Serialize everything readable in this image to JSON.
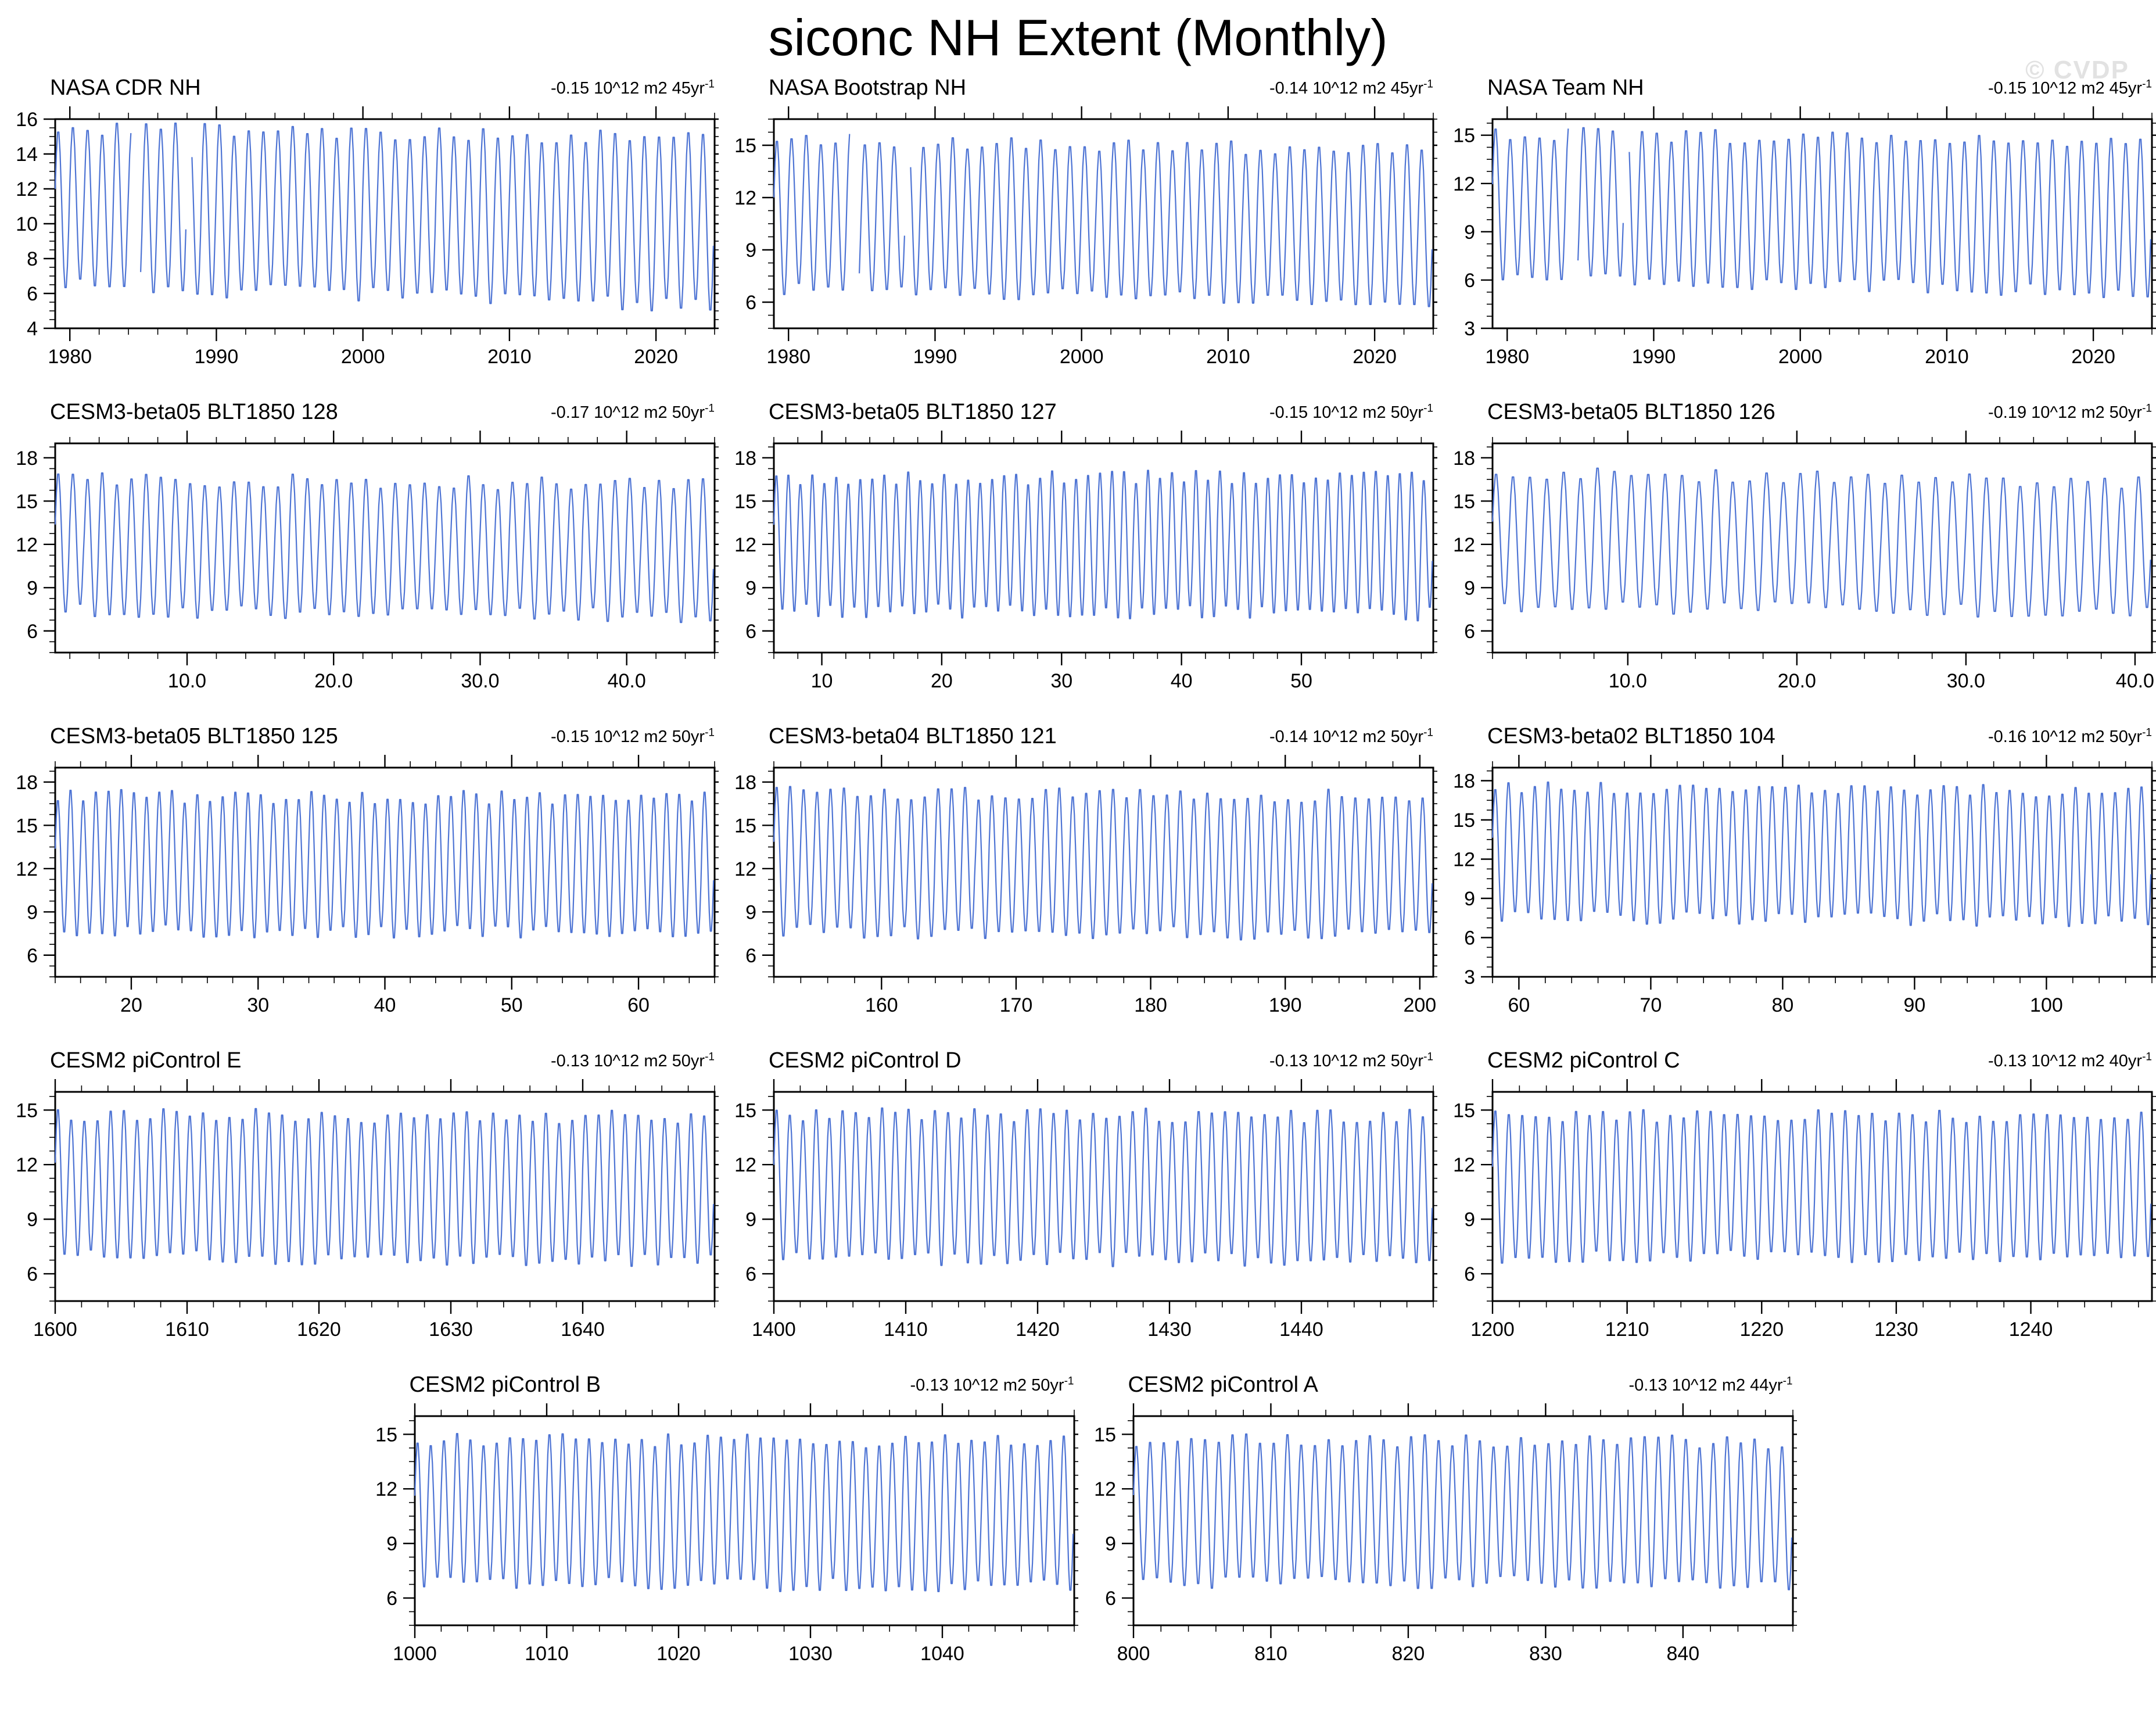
{
  "title": "siconc NH Extent (Monthly)",
  "watermark": "© CVDP",
  "colors": {
    "line": "#4e74d4",
    "axis": "#000000",
    "watermark": "#e2e2e2"
  },
  "chart_data": [
    {
      "type": "line",
      "title": "NASA CDR NH",
      "trend_text": "-0.15 10^12 m2 45yr",
      "trend_sup": "-1",
      "x_start": 1979,
      "x_end": 2024,
      "xticks": [
        1980,
        1990,
        2000,
        2010,
        2020
      ],
      "xtick_labels": [
        "1980",
        "1990",
        "2000",
        "2010",
        "2020"
      ],
      "x_minor_step": 2,
      "ylim": [
        4,
        16
      ],
      "yticks": [
        4,
        6,
        8,
        10,
        12,
        14,
        16
      ],
      "ytick_labels": [
        "4",
        "6",
        "8",
        "10",
        "12",
        "14",
        "16"
      ],
      "y_minor_step": 0.5,
      "line_color": "#4e74d4",
      "envelope": {
        "winter_max_start": 15.7,
        "winter_max_end": 15.0,
        "summer_min_start": 6.3,
        "summer_min_end": 5.1,
        "noise": 0.45,
        "seed": 11
      },
      "gaps": [
        [
          1984.2,
          1984.8
        ],
        [
          1987.95,
          1988.25
        ]
      ]
    },
    {
      "type": "line",
      "title": "NASA Bootstrap NH",
      "trend_text": "-0.14 10^12 m2 45yr",
      "trend_sup": "-1",
      "x_start": 1979,
      "x_end": 2024,
      "xticks": [
        1980,
        1990,
        2000,
        2010,
        2020
      ],
      "xtick_labels": [
        "1980",
        "1990",
        "2000",
        "2010",
        "2020"
      ],
      "x_minor_step": 2,
      "ylim": [
        4.5,
        16.5
      ],
      "yticks": [
        6,
        9,
        12,
        15
      ],
      "ytick_labels": [
        "6",
        "9",
        "12",
        "15"
      ],
      "y_minor_step": 0.75,
      "line_color": "#4e74d4",
      "envelope": {
        "winter_max_start": 15.5,
        "winter_max_end": 14.8,
        "summer_min_start": 6.6,
        "summer_min_end": 5.8,
        "noise": 0.4,
        "seed": 23
      },
      "gaps": [
        [
          1984.2,
          1984.8
        ],
        [
          1987.95,
          1988.25
        ]
      ]
    },
    {
      "type": "line",
      "title": "NASA Team NH",
      "trend_text": "-0.15 10^12 m2 45yr",
      "trend_sup": "-1",
      "x_start": 1979,
      "x_end": 2024,
      "xticks": [
        1980,
        1990,
        2000,
        2010,
        2020
      ],
      "xtick_labels": [
        "1980",
        "1990",
        "2000",
        "2010",
        "2020"
      ],
      "x_minor_step": 2,
      "ylim": [
        3,
        16
      ],
      "yticks": [
        3,
        6,
        9,
        12,
        15
      ],
      "ytick_labels": [
        "3",
        "6",
        "9",
        "12",
        "15"
      ],
      "y_minor_step": 0.75,
      "line_color": "#4e74d4",
      "envelope": {
        "winter_max_start": 15.3,
        "winter_max_end": 14.6,
        "summer_min_start": 6.1,
        "summer_min_end": 5.0,
        "noise": 0.45,
        "seed": 37
      },
      "gaps": [
        [
          1984.2,
          1984.8
        ],
        [
          1987.95,
          1988.25
        ]
      ]
    },
    {
      "type": "line",
      "title": "CESM3-beta05 BLT1850 128",
      "trend_text": "-0.17 10^12 m2 50yr",
      "trend_sup": "-1",
      "x_start": 1,
      "x_end": 46,
      "xticks": [
        10,
        20,
        30,
        40
      ],
      "xtick_labels": [
        "10.0",
        "20.0",
        "30.0",
        "40.0"
      ],
      "x_minor_step": 2,
      "ylim": [
        4.5,
        19
      ],
      "yticks": [
        6,
        9,
        12,
        15,
        18
      ],
      "ytick_labels": [
        "6",
        "9",
        "12",
        "15",
        "18"
      ],
      "y_minor_step": 0.75,
      "line_color": "#4e74d4",
      "envelope": {
        "winter_max_start": 16.7,
        "winter_max_end": 16.3,
        "summer_min_start": 7.2,
        "summer_min_end": 6.9,
        "noise": 0.5,
        "seed": 41
      },
      "gaps": []
    },
    {
      "type": "line",
      "title": "CESM3-beta05 BLT1850 127",
      "trend_text": "-0.15 10^12 m2 50yr",
      "trend_sup": "-1",
      "x_start": 6,
      "x_end": 61,
      "xticks": [
        10,
        20,
        30,
        40,
        50
      ],
      "xtick_labels": [
        "10",
        "20",
        "30",
        "40",
        "50"
      ],
      "x_minor_step": 2,
      "ylim": [
        4.5,
        19
      ],
      "yticks": [
        6,
        9,
        12,
        15,
        18
      ],
      "ytick_labels": [
        "6",
        "9",
        "12",
        "15",
        "18"
      ],
      "y_minor_step": 0.75,
      "line_color": "#4e74d4",
      "envelope": {
        "winter_max_start": 16.7,
        "winter_max_end": 16.9,
        "summer_min_start": 7.3,
        "summer_min_end": 7.0,
        "noise": 0.5,
        "seed": 53
      },
      "gaps": []
    },
    {
      "type": "line",
      "title": "CESM3-beta05 BLT1850 126",
      "trend_text": "-0.19 10^12 m2 50yr",
      "trend_sup": "-1",
      "x_start": 2,
      "x_end": 41,
      "xticks": [
        10,
        20,
        30,
        40
      ],
      "xtick_labels": [
        "10.0",
        "20.0",
        "30.0",
        "40.0"
      ],
      "x_minor_step": 2,
      "ylim": [
        4.5,
        19
      ],
      "yticks": [
        6,
        9,
        12,
        15,
        18
      ],
      "ytick_labels": [
        "6",
        "9",
        "12",
        "15",
        "18"
      ],
      "y_minor_step": 0.75,
      "line_color": "#4e74d4",
      "envelope": {
        "winter_max_start": 17.2,
        "winter_max_end": 16.5,
        "summer_min_start": 7.6,
        "summer_min_end": 7.1,
        "noise": 0.5,
        "seed": 67
      },
      "gaps": []
    },
    {
      "type": "line",
      "title": "CESM3-beta05 BLT1850 125",
      "trend_text": "-0.15 10^12 m2 50yr",
      "trend_sup": "-1",
      "x_start": 14,
      "x_end": 66,
      "xticks": [
        20,
        30,
        40,
        50,
        60
      ],
      "xtick_labels": [
        "20",
        "30",
        "40",
        "50",
        "60"
      ],
      "x_minor_step": 2,
      "ylim": [
        4.5,
        19
      ],
      "yticks": [
        6,
        9,
        12,
        15,
        18
      ],
      "ytick_labels": [
        "6",
        "9",
        "12",
        "15",
        "18"
      ],
      "y_minor_step": 0.75,
      "line_color": "#4e74d4",
      "envelope": {
        "winter_max_start": 17.2,
        "winter_max_end": 17.0,
        "summer_min_start": 7.6,
        "summer_min_end": 7.3,
        "noise": 0.5,
        "seed": 71
      },
      "gaps": []
    },
    {
      "type": "line",
      "title": "CESM3-beta04 BLT1850 121",
      "trend_text": "-0.14 10^12 m2 50yr",
      "trend_sup": "-1",
      "x_start": 152,
      "x_end": 201,
      "xticks": [
        160,
        170,
        180,
        190,
        200
      ],
      "xtick_labels": [
        "160",
        "170",
        "180",
        "190",
        "200"
      ],
      "x_minor_step": 2,
      "ylim": [
        4.5,
        19
      ],
      "yticks": [
        6,
        9,
        12,
        15,
        18
      ],
      "ytick_labels": [
        "6",
        "9",
        "12",
        "15",
        "18"
      ],
      "y_minor_step": 0.75,
      "line_color": "#4e74d4",
      "envelope": {
        "winter_max_start": 17.4,
        "winter_max_end": 17.2,
        "summer_min_start": 7.5,
        "summer_min_end": 7.2,
        "noise": 0.5,
        "seed": 83
      },
      "gaps": []
    },
    {
      "type": "line",
      "title": "CESM3-beta02 BLT1850 104",
      "trend_text": "-0.16 10^12 m2 50yr",
      "trend_sup": "-1",
      "x_start": 58,
      "x_end": 108,
      "xticks": [
        60,
        70,
        80,
        90,
        100
      ],
      "xtick_labels": [
        "60",
        "70",
        "80",
        "90",
        "100"
      ],
      "x_minor_step": 2,
      "ylim": [
        3,
        19
      ],
      "yticks": [
        3,
        6,
        9,
        12,
        15,
        18
      ],
      "ytick_labels": [
        "3",
        "6",
        "9",
        "12",
        "15",
        "18"
      ],
      "y_minor_step": 0.75,
      "line_color": "#4e74d4",
      "envelope": {
        "winter_max_start": 17.6,
        "winter_max_end": 17.3,
        "summer_min_start": 7.4,
        "summer_min_end": 7.1,
        "noise": 0.5,
        "seed": 97
      },
      "gaps": []
    },
    {
      "type": "line",
      "title": "CESM2 piControl E",
      "trend_text": "-0.13 10^12 m2 50yr",
      "trend_sup": "-1",
      "x_start": 1600,
      "x_end": 1650,
      "xticks": [
        1600,
        1610,
        1620,
        1630,
        1640
      ],
      "xtick_labels": [
        "1600",
        "1610",
        "1620",
        "1630",
        "1640"
      ],
      "x_minor_step": 2,
      "ylim": [
        4.5,
        16
      ],
      "yticks": [
        6,
        9,
        12,
        15
      ],
      "ytick_labels": [
        "6",
        "9",
        "12",
        "15"
      ],
      "y_minor_step": 0.75,
      "line_color": "#4e74d4",
      "envelope": {
        "winter_max_start": 14.9,
        "winter_max_end": 14.7,
        "summer_min_start": 6.8,
        "summer_min_end": 6.6,
        "noise": 0.4,
        "seed": 103
      },
      "gaps": []
    },
    {
      "type": "line",
      "title": "CESM2 piControl D",
      "trend_text": "-0.13 10^12 m2 50yr",
      "trend_sup": "-1",
      "x_start": 1400,
      "x_end": 1450,
      "xticks": [
        1400,
        1410,
        1420,
        1430,
        1440
      ],
      "xtick_labels": [
        "1400",
        "1410",
        "1420",
        "1430",
        "1440"
      ],
      "x_minor_step": 2,
      "ylim": [
        4.5,
        16
      ],
      "yticks": [
        6,
        9,
        12,
        15
      ],
      "ytick_labels": [
        "6",
        "9",
        "12",
        "15"
      ],
      "y_minor_step": 0.75,
      "line_color": "#4e74d4",
      "envelope": {
        "winter_max_start": 14.9,
        "winter_max_end": 14.8,
        "summer_min_start": 6.7,
        "summer_min_end": 6.6,
        "noise": 0.4,
        "seed": 109
      },
      "gaps": []
    },
    {
      "type": "line",
      "title": "CESM2 piControl C",
      "trend_text": "-0.13 10^12 m2 40yr",
      "trend_sup": "-1",
      "x_start": 1200,
      "x_end": 1249,
      "xticks": [
        1200,
        1210,
        1220,
        1230,
        1240
      ],
      "xtick_labels": [
        "1200",
        "1210",
        "1220",
        "1230",
        "1240"
      ],
      "x_minor_step": 2,
      "ylim": [
        4.5,
        16
      ],
      "yticks": [
        6,
        9,
        12,
        15
      ],
      "ytick_labels": [
        "6",
        "9",
        "12",
        "15"
      ],
      "y_minor_step": 0.75,
      "line_color": "#4e74d4",
      "envelope": {
        "winter_max_start": 14.8,
        "winter_max_end": 14.7,
        "summer_min_start": 6.8,
        "summer_min_end": 6.7,
        "noise": 0.4,
        "seed": 127
      },
      "gaps": []
    },
    {
      "type": "line",
      "title": "CESM2 piControl B",
      "trend_text": "-0.13 10^12 m2 50yr",
      "trend_sup": "-1",
      "x_start": 1000,
      "x_end": 1050,
      "xticks": [
        1000,
        1010,
        1020,
        1030,
        1040
      ],
      "xtick_labels": [
        "1000",
        "1010",
        "1020",
        "1030",
        "1040"
      ],
      "x_minor_step": 2,
      "ylim": [
        4.5,
        16
      ],
      "yticks": [
        6,
        9,
        12,
        15
      ],
      "ytick_labels": [
        "6",
        "9",
        "12",
        "15"
      ],
      "y_minor_step": 0.75,
      "line_color": "#4e74d4",
      "envelope": {
        "winter_max_start": 14.9,
        "winter_max_end": 14.7,
        "summer_min_start": 6.7,
        "summer_min_end": 6.5,
        "noise": 0.4,
        "seed": 131
      },
      "gaps": []
    },
    {
      "type": "line",
      "title": "CESM2 piControl A",
      "trend_text": "-0.13 10^12 m2 44yr",
      "trend_sup": "-1",
      "x_start": 800,
      "x_end": 848,
      "xticks": [
        800,
        810,
        820,
        830,
        840
      ],
      "xtick_labels": [
        "800",
        "810",
        "820",
        "830",
        "840"
      ],
      "x_minor_step": 2,
      "ylim": [
        4.5,
        16
      ],
      "yticks": [
        6,
        9,
        12,
        15
      ],
      "ytick_labels": [
        "6",
        "9",
        "12",
        "15"
      ],
      "y_minor_step": 0.75,
      "line_color": "#4e74d4",
      "envelope": {
        "winter_max_start": 14.8,
        "winter_max_end": 14.7,
        "summer_min_start": 6.8,
        "summer_min_end": 6.7,
        "noise": 0.4,
        "seed": 139
      },
      "gaps": []
    }
  ]
}
